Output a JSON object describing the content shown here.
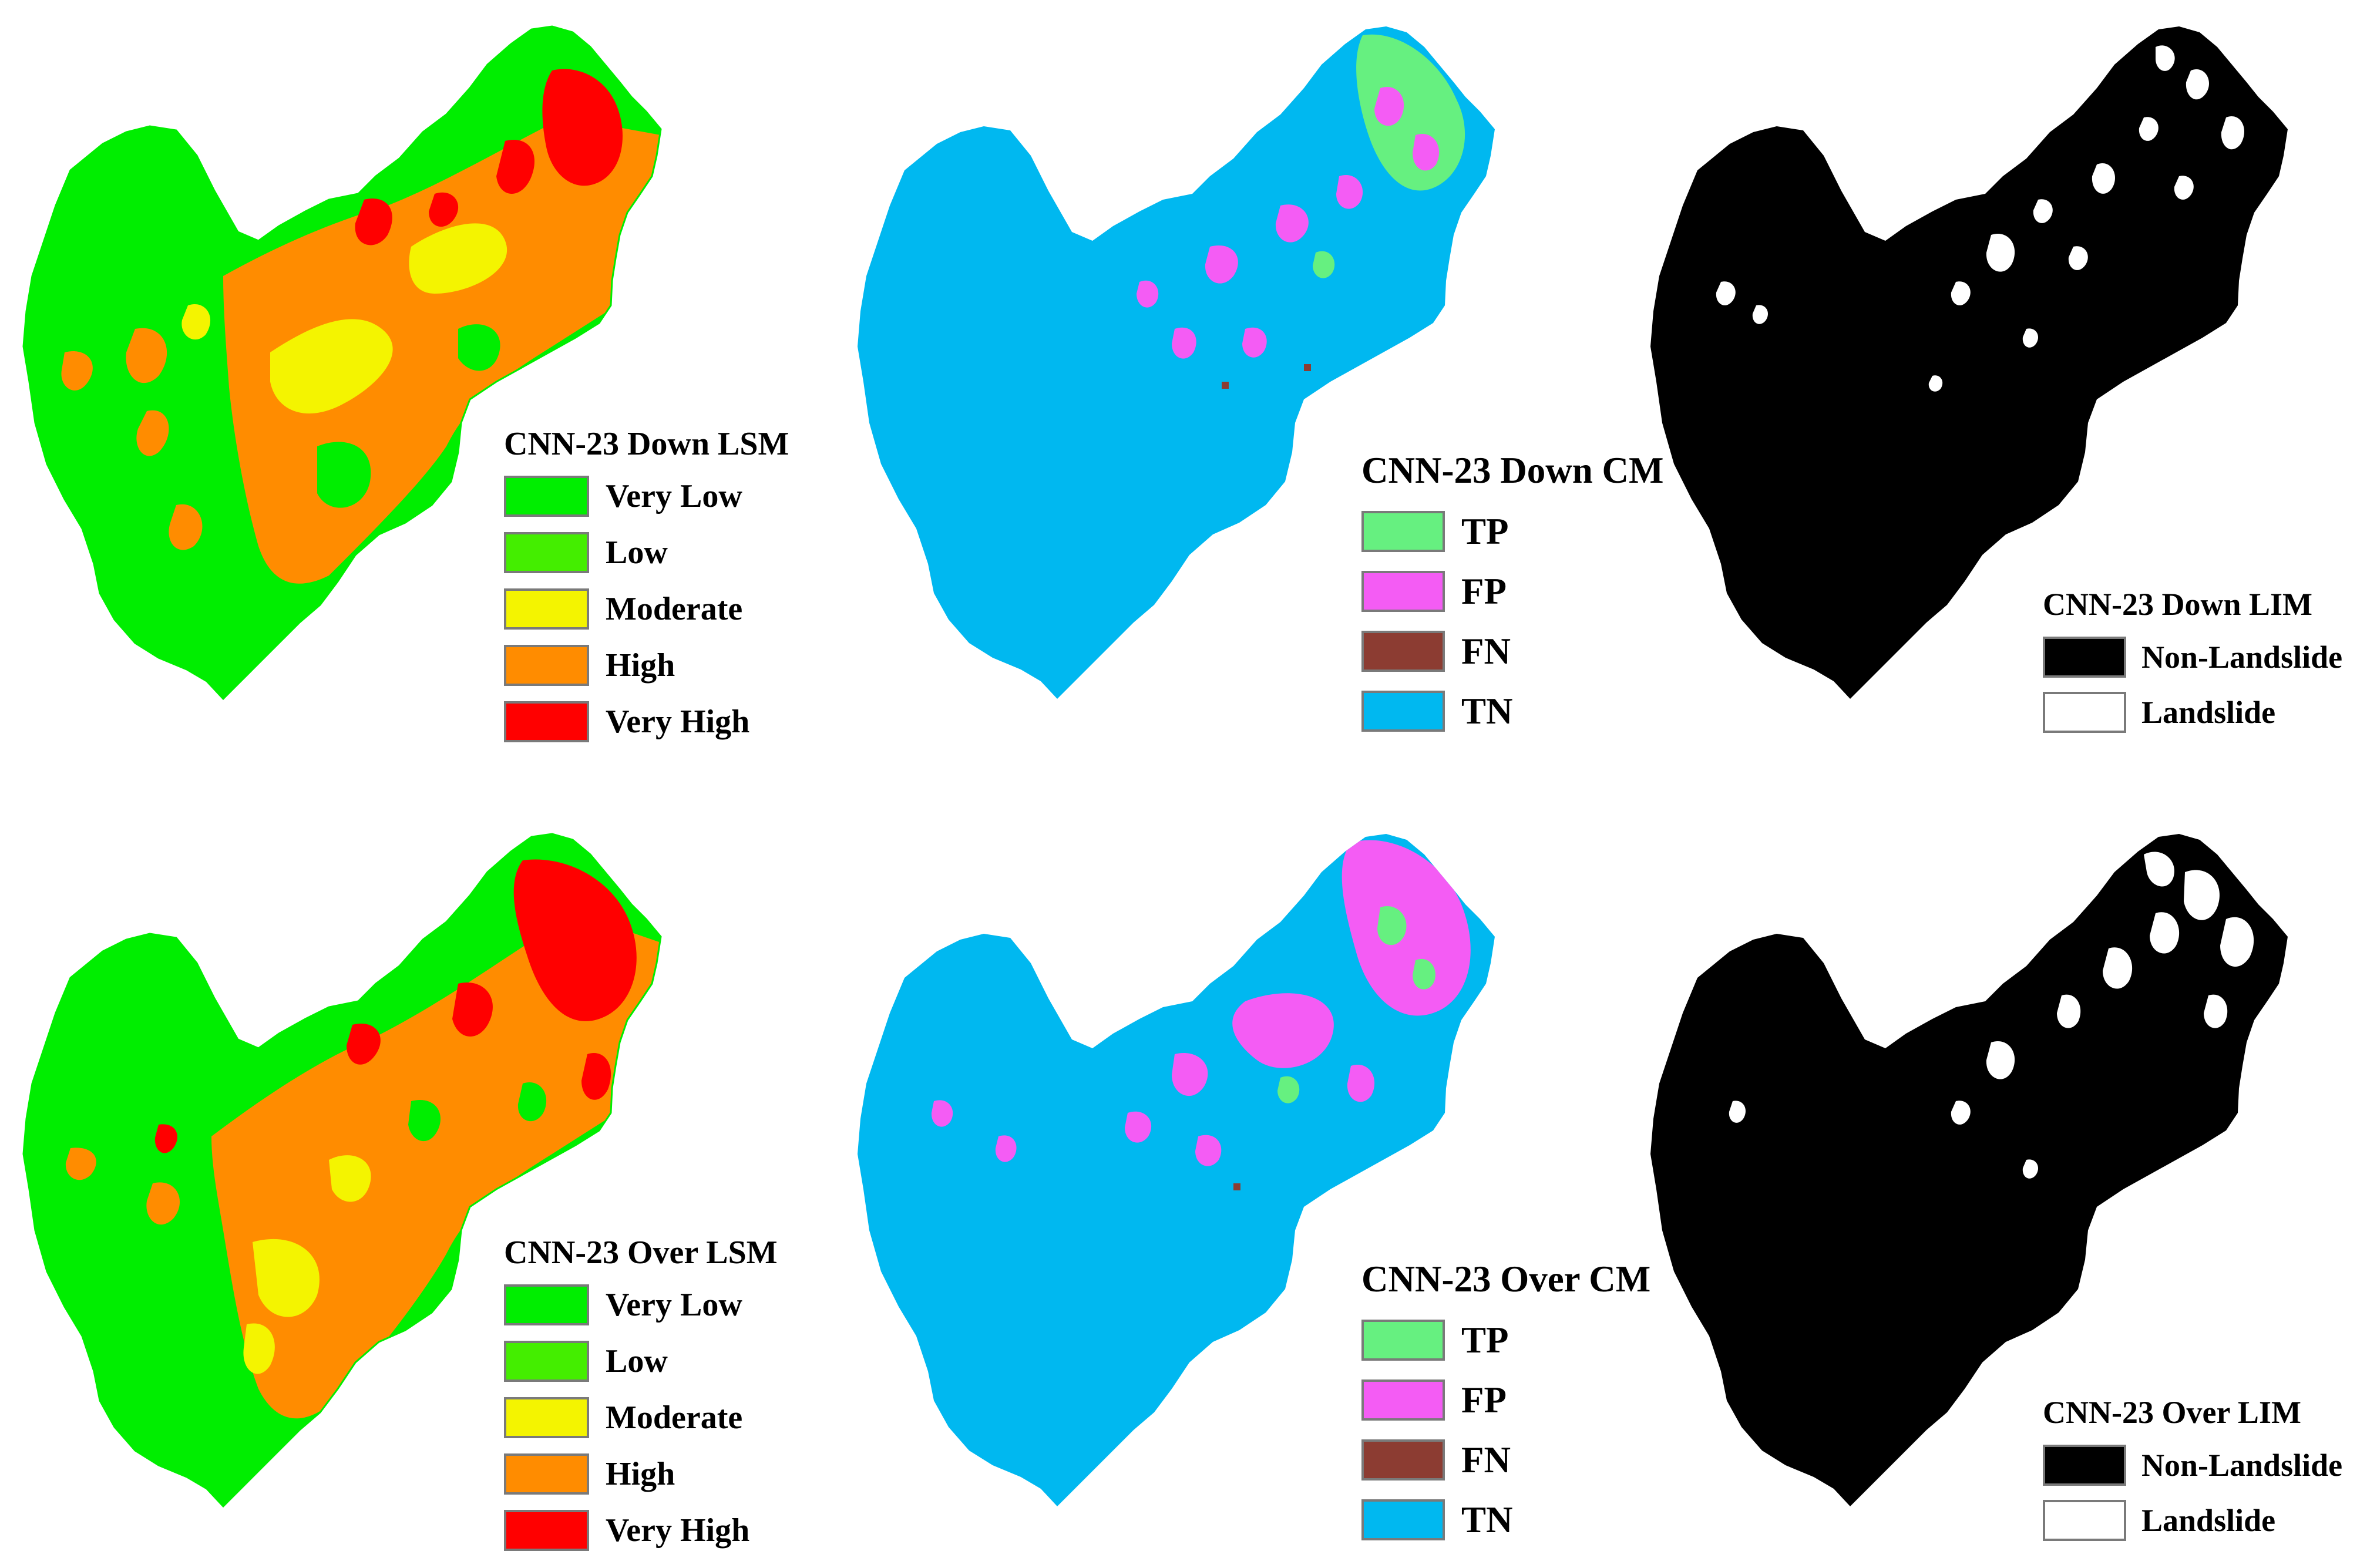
{
  "colors": {
    "very_low": "#00ee00",
    "low": "#44ee00",
    "moderate": "#f4f400",
    "high": "#ff8c00",
    "very_high": "#ff0000",
    "tp": "#66f080",
    "fp": "#f45cf4",
    "fn": "#8c3c32",
    "tn": "#00b8f0",
    "non_landslide": "#000000",
    "landslide": "#ffffff",
    "swatch_border": "#7a7a7a"
  },
  "panels": {
    "down": {
      "lsm": {
        "title": "CNN-23 Down LSM",
        "items": [
          {
            "label": "Very Low",
            "color": "#00ee00"
          },
          {
            "label": "Low",
            "color": "#44ee00"
          },
          {
            "label": "Moderate",
            "color": "#f4f400"
          },
          {
            "label": "High",
            "color": "#ff8c00"
          },
          {
            "label": "Very High",
            "color": "#ff0000"
          }
        ]
      },
      "cm": {
        "title": "CNN-23 Down CM",
        "items": [
          {
            "label": "TP",
            "color": "#66f080"
          },
          {
            "label": "FP",
            "color": "#f45cf4"
          },
          {
            "label": "FN",
            "color": "#8c3c32"
          },
          {
            "label": "TN",
            "color": "#00b8f0"
          }
        ]
      },
      "lim": {
        "title": "CNN-23 Down LIM",
        "items": [
          {
            "label": "Non-Landslide",
            "color": "#000000"
          },
          {
            "label": "Landslide",
            "color": "#ffffff"
          }
        ]
      }
    },
    "over": {
      "lsm": {
        "title": "CNN-23 Over LSM",
        "items": [
          {
            "label": "Very Low",
            "color": "#00ee00"
          },
          {
            "label": "Low",
            "color": "#44ee00"
          },
          {
            "label": "Moderate",
            "color": "#f4f400"
          },
          {
            "label": "High",
            "color": "#ff8c00"
          },
          {
            "label": "Very High",
            "color": "#ff0000"
          }
        ]
      },
      "cm": {
        "title": "CNN-23 Over CM",
        "items": [
          {
            "label": "TP",
            "color": "#66f080"
          },
          {
            "label": "FP",
            "color": "#f45cf4"
          },
          {
            "label": "FN",
            "color": "#8c3c32"
          },
          {
            "label": "TN",
            "color": "#00b8f0"
          }
        ]
      },
      "lim": {
        "title": "CNN-23 Over LIM",
        "items": [
          {
            "label": "Non-Landslide",
            "color": "#000000"
          },
          {
            "label": "Landslide",
            "color": "#ffffff"
          }
        ]
      }
    }
  }
}
